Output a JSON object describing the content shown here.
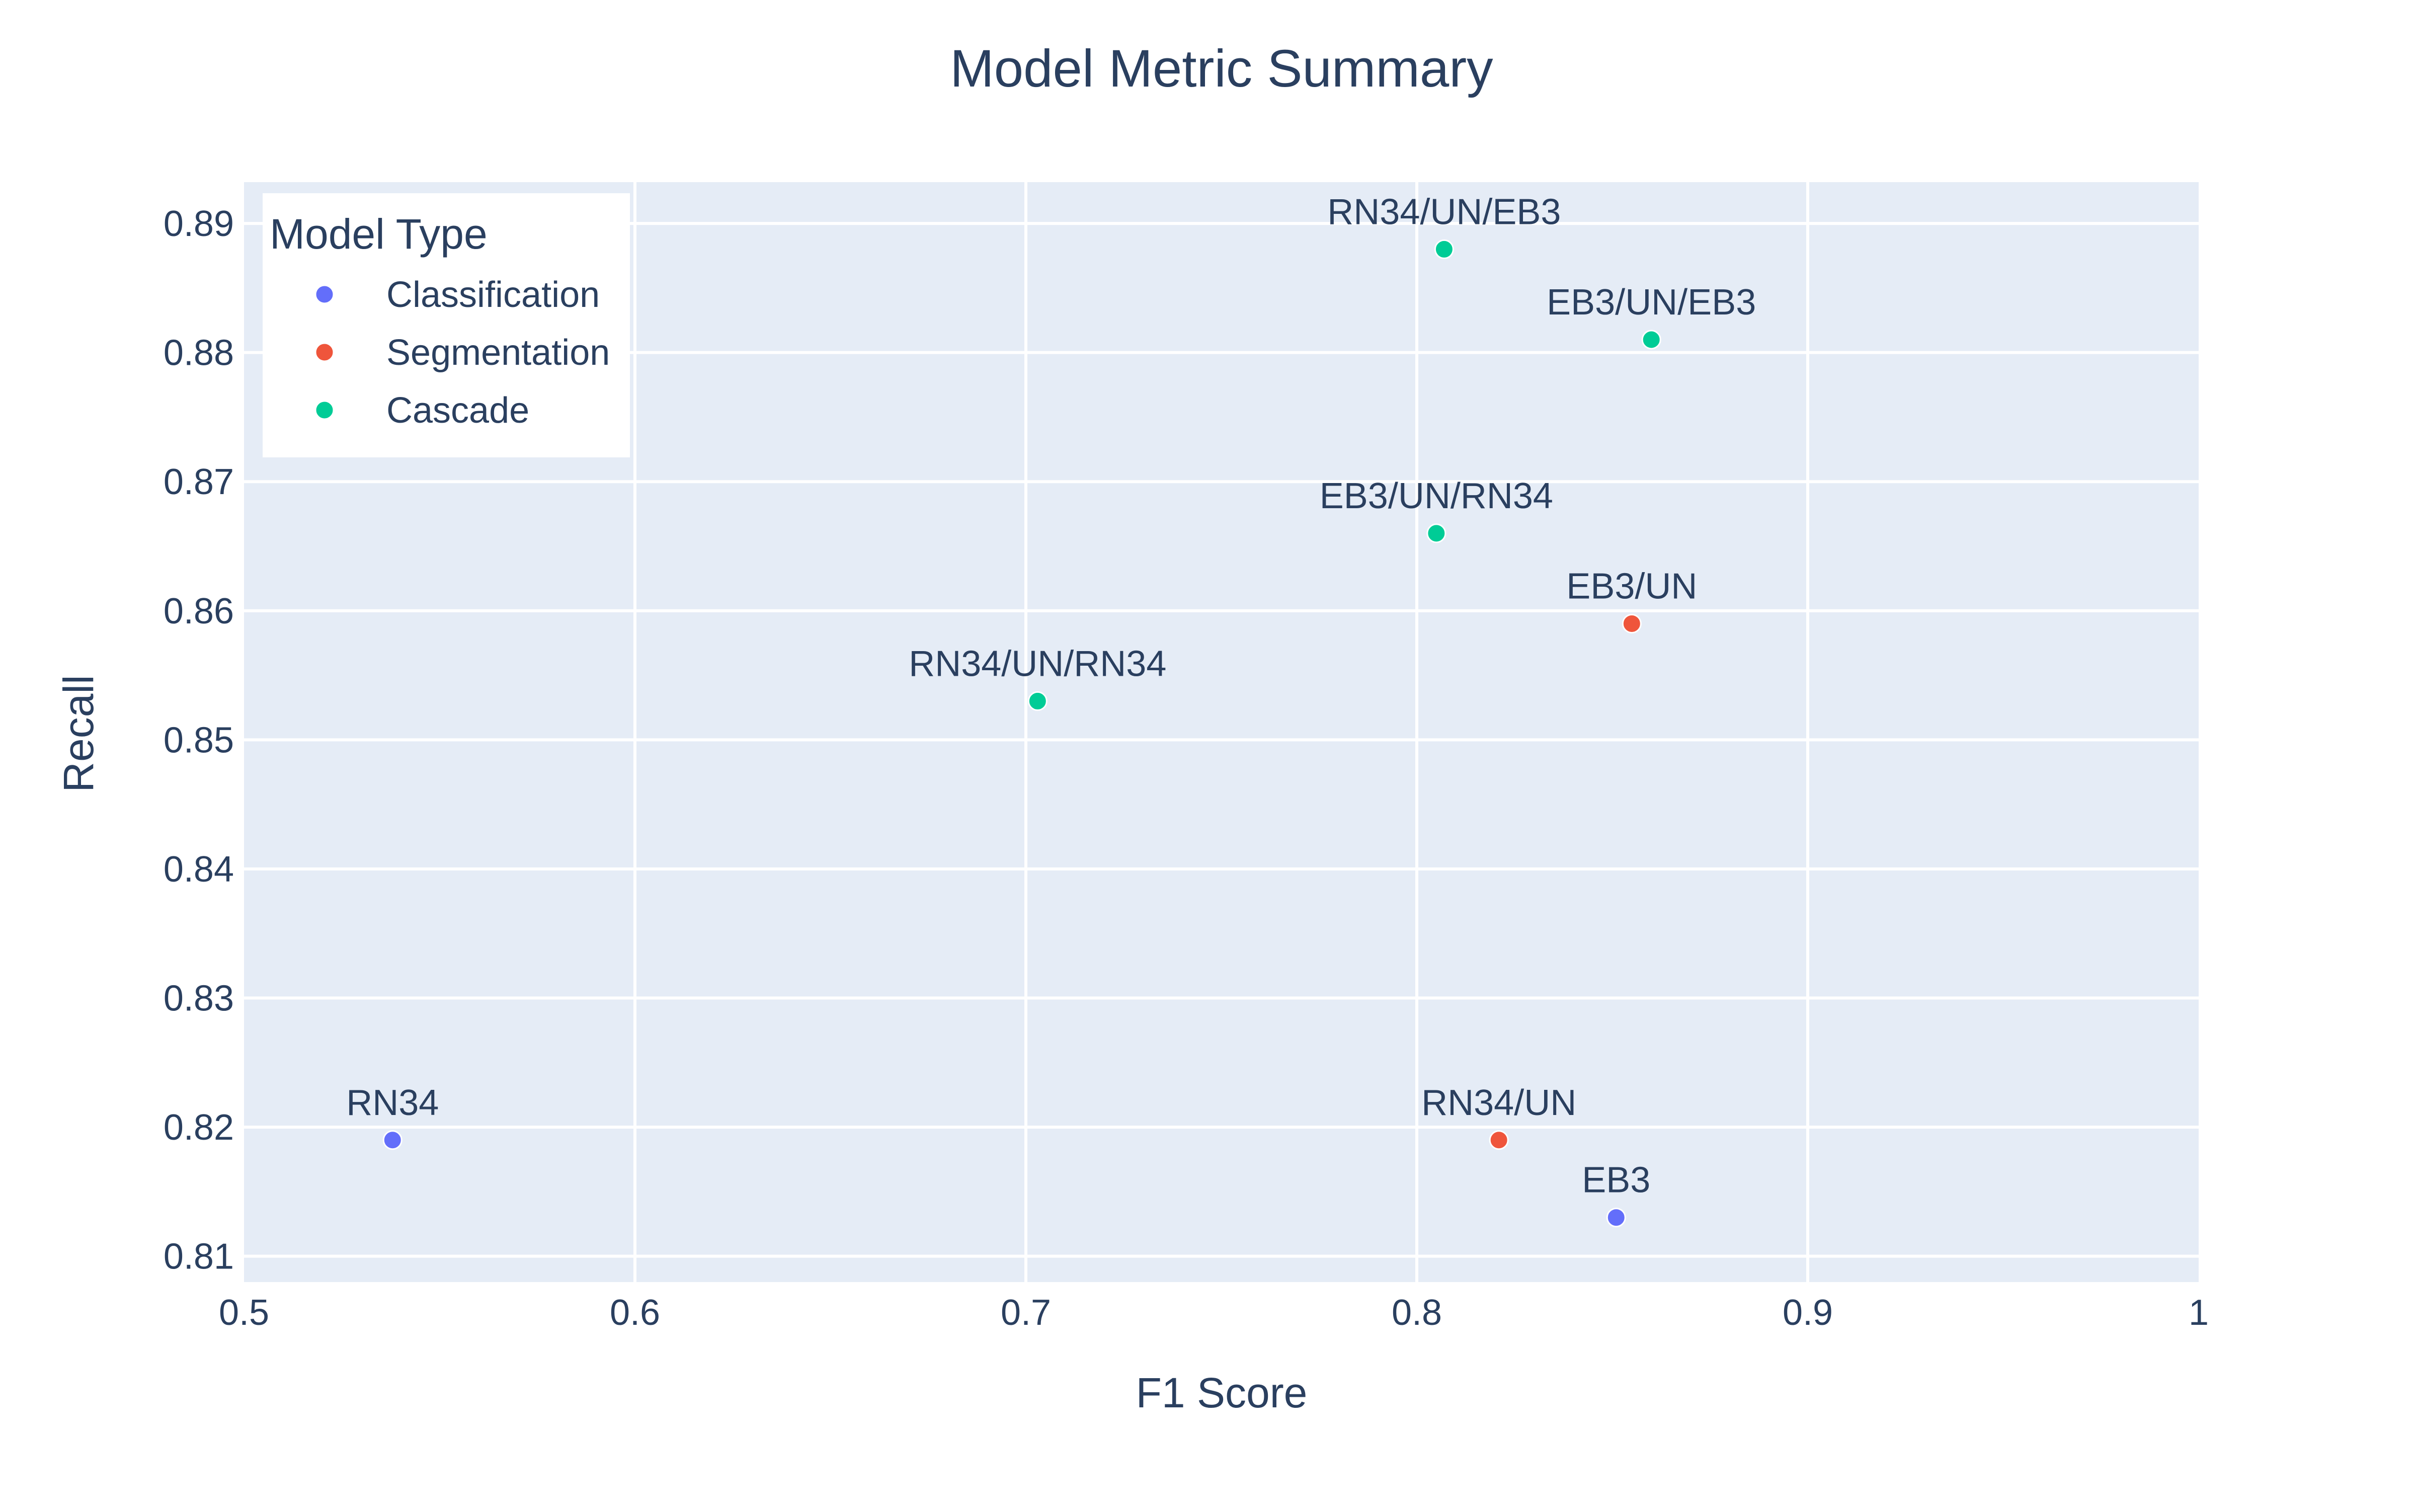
{
  "chart_data": {
    "type": "scatter",
    "title": "Model Metric Summary",
    "xlabel": "F1 Score",
    "ylabel": "Recall",
    "xlim": [
      0.5,
      1.0
    ],
    "ylim": [
      0.808,
      0.8932
    ],
    "x_ticks": [
      {
        "value": 0.5,
        "label": "0.5"
      },
      {
        "value": 0.6,
        "label": "0.6"
      },
      {
        "value": 0.7,
        "label": "0.7"
      },
      {
        "value": 0.8,
        "label": "0.8"
      },
      {
        "value": 0.9,
        "label": "0.9"
      },
      {
        "value": 1.0,
        "label": "1"
      }
    ],
    "y_ticks": [
      {
        "value": 0.81,
        "label": "0.81"
      },
      {
        "value": 0.82,
        "label": "0.82"
      },
      {
        "value": 0.83,
        "label": "0.83"
      },
      {
        "value": 0.84,
        "label": "0.84"
      },
      {
        "value": 0.85,
        "label": "0.85"
      },
      {
        "value": 0.86,
        "label": "0.86"
      },
      {
        "value": 0.87,
        "label": "0.87"
      },
      {
        "value": 0.88,
        "label": "0.88"
      },
      {
        "value": 0.89,
        "label": "0.89"
      }
    ],
    "grid": true,
    "legend": {
      "title": "Model Type",
      "position": "top-left"
    },
    "series": [
      {
        "name": "Classification",
        "color": "#636efa",
        "points": [
          {
            "label": "RN34",
            "x": 0.538,
            "y": 0.819
          },
          {
            "label": "EB3",
            "x": 0.851,
            "y": 0.813
          }
        ]
      },
      {
        "name": "Segmentation",
        "color": "#ef553b",
        "points": [
          {
            "label": "EB3/UN",
            "x": 0.855,
            "y": 0.859
          },
          {
            "label": "RN34/UN",
            "x": 0.821,
            "y": 0.819
          }
        ]
      },
      {
        "name": "Cascade",
        "color": "#00cc96",
        "points": [
          {
            "label": "RN34/UN/EB3",
            "x": 0.807,
            "y": 0.888
          },
          {
            "label": "EB3/UN/EB3",
            "x": 0.86,
            "y": 0.881
          },
          {
            "label": "EB3/UN/RN34",
            "x": 0.805,
            "y": 0.866
          },
          {
            "label": "RN34/UN/RN34",
            "x": 0.703,
            "y": 0.853
          }
        ]
      }
    ],
    "plot_background": "#e5ecf6",
    "grid_color": "#ffffff"
  }
}
